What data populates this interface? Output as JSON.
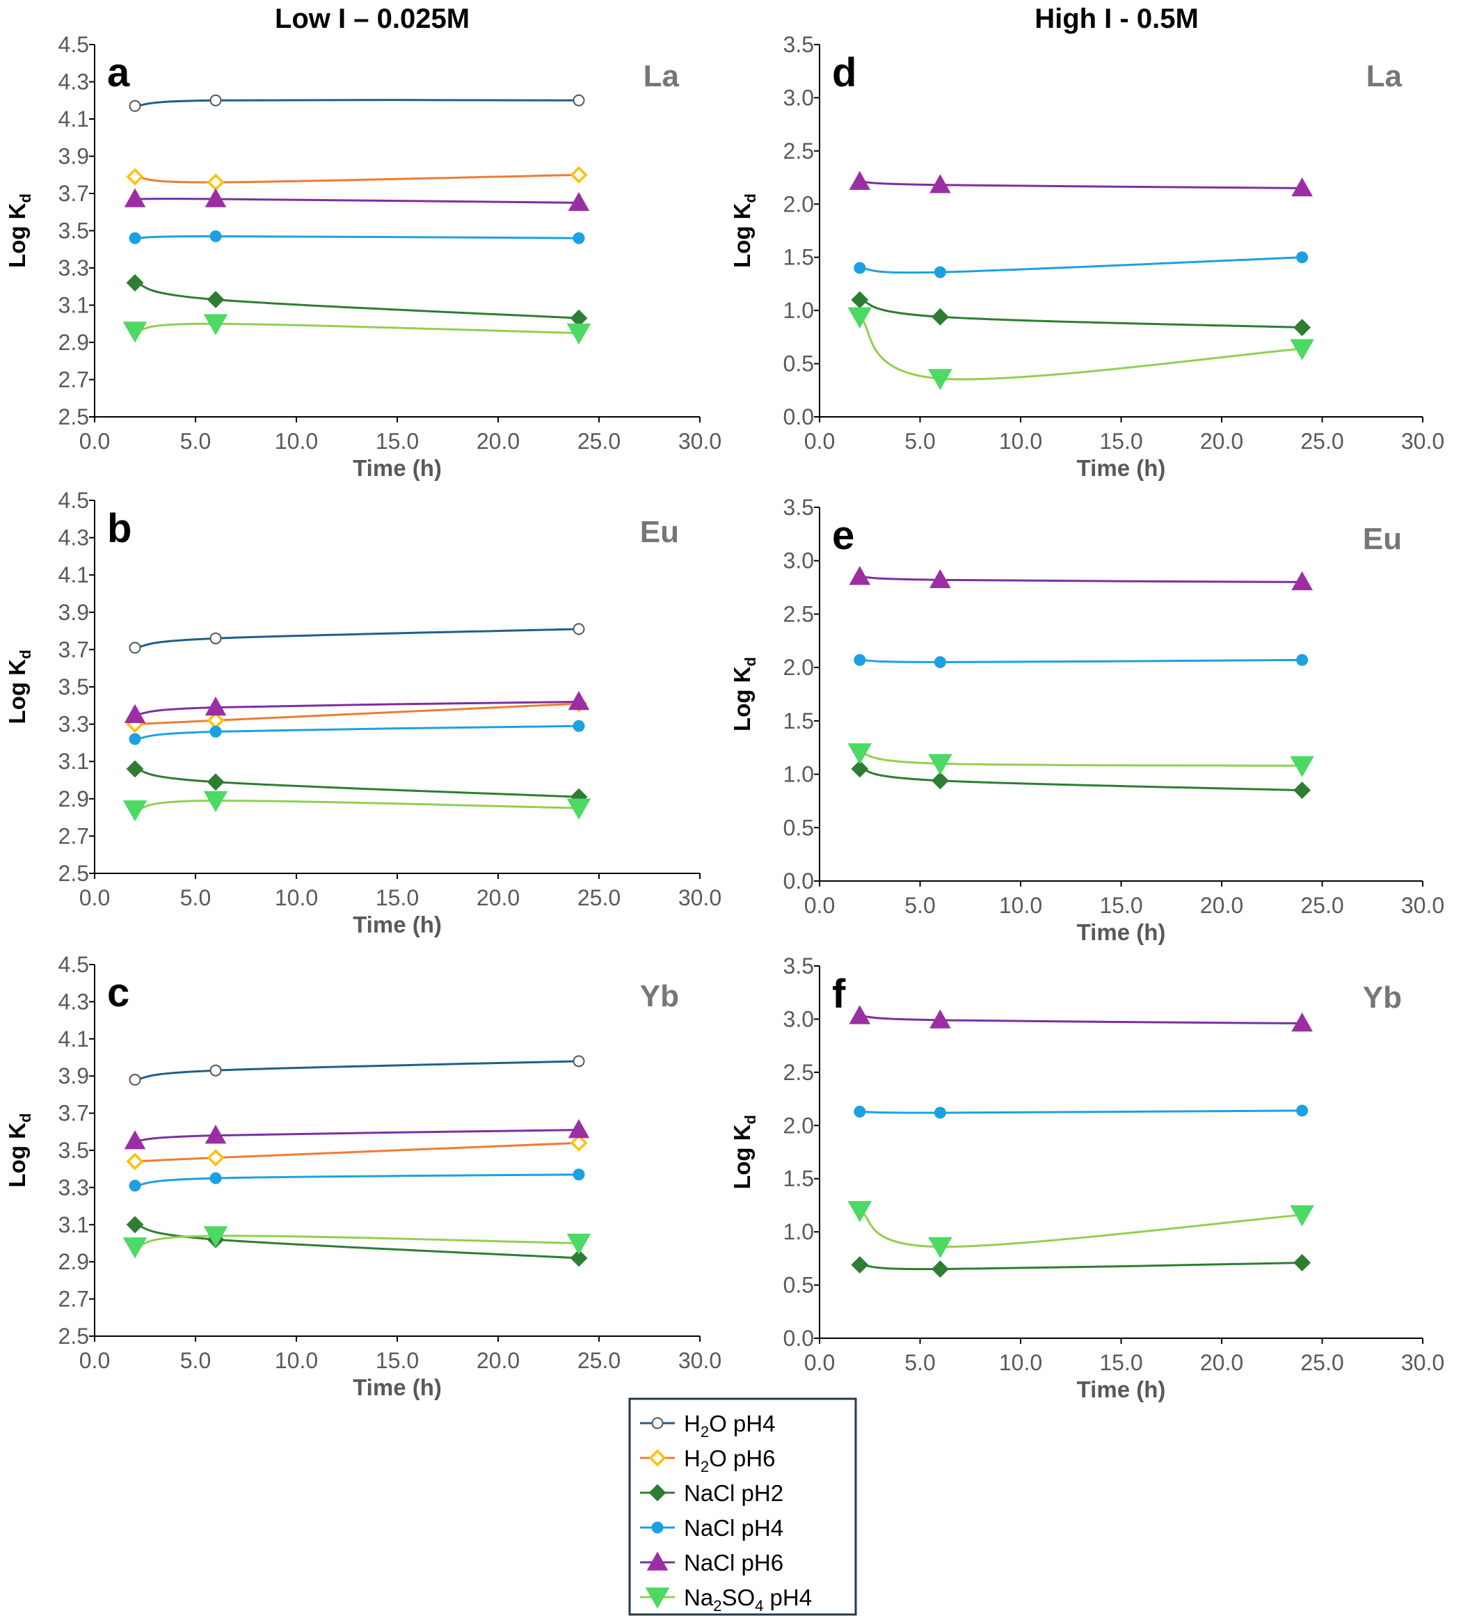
{
  "column_titles": {
    "left": "Low I – 0.025M",
    "right": "High I - 0.5M"
  },
  "legend": [
    {
      "key": "h2o_ph4",
      "parts": [
        [
          "H",
          false
        ],
        [
          "2",
          true
        ],
        [
          "O pH4",
          false
        ]
      ],
      "color": "#1f5f8b",
      "fill": "#ffffff",
      "edge": "#555555",
      "marker": "circle"
    },
    {
      "key": "h2o_ph6",
      "parts": [
        [
          "H",
          false
        ],
        [
          "2",
          true
        ],
        [
          "O pH6",
          false
        ]
      ],
      "color": "#ed7d31",
      "fill": "#ffffff",
      "edge": "#ffc000",
      "marker": "diamond"
    },
    {
      "key": "nacl_ph2",
      "parts": [
        [
          "NaCl pH2",
          false
        ]
      ],
      "color": "#2e7d32",
      "fill": "#2e7d32",
      "edge": "#2e7d32",
      "marker": "diamond"
    },
    {
      "key": "nacl_ph4",
      "parts": [
        [
          "NaCl pH4",
          false
        ]
      ],
      "color": "#1ba1e2",
      "fill": "#1ba1e2",
      "edge": "#1ba1e2",
      "marker": "circle"
    },
    {
      "key": "nacl_ph6",
      "parts": [
        [
          "NaCl pH6",
          false
        ]
      ],
      "color": "#7b2fa0",
      "fill": "#9b2ea3",
      "edge": "#9b2ea3",
      "marker": "triangle-up"
    },
    {
      "key": "na2so4_ph4",
      "parts": [
        [
          "Na",
          false
        ],
        [
          "2",
          true
        ],
        [
          "SO",
          false
        ],
        [
          "4",
          true
        ],
        [
          " pH4",
          false
        ]
      ],
      "color": "#92d050",
      "fill": "#4cd964",
      "edge": "#4cd964",
      "marker": "triangle-down"
    }
  ],
  "chart_data": [
    {
      "panel": "a",
      "element": "La",
      "type": "line",
      "title": "",
      "xlabel": "Time (h)",
      "ylabel": [
        "Log K",
        "d"
      ],
      "xlim": [
        0,
        30
      ],
      "xticks": [
        "0.0",
        "5.0",
        "10.0",
        "15.0",
        "20.0",
        "25.0",
        "30.0"
      ],
      "ylim": [
        2.5,
        4.5
      ],
      "yticks": [
        "2.5",
        "2.7",
        "2.9",
        "3.1",
        "3.3",
        "3.5",
        "3.7",
        "3.9",
        "4.1",
        "4.3",
        "4.5"
      ],
      "x": [
        2,
        6,
        24
      ],
      "series": [
        {
          "name": "H2O pH4",
          "key": "h2o_ph4",
          "values": [
            4.17,
            4.2,
            4.2
          ]
        },
        {
          "name": "H2O pH6",
          "key": "h2o_ph6",
          "values": [
            3.79,
            3.76,
            3.8
          ]
        },
        {
          "name": "NaCl pH2",
          "key": "nacl_ph2",
          "values": [
            3.22,
            3.13,
            3.03
          ]
        },
        {
          "name": "NaCl pH4",
          "key": "nacl_ph4",
          "values": [
            3.46,
            3.47,
            3.46
          ]
        },
        {
          "name": "NaCl pH6",
          "key": "nacl_ph6",
          "values": [
            3.67,
            3.67,
            3.65
          ]
        },
        {
          "name": "Na2SO4 pH4",
          "key": "na2so4_ph4",
          "values": [
            2.96,
            3.0,
            2.95
          ]
        }
      ]
    },
    {
      "panel": "b",
      "element": "Eu",
      "type": "line",
      "title": "",
      "xlabel": "Time (h)",
      "ylabel": [
        "Log K",
        "d"
      ],
      "xlim": [
        0,
        30
      ],
      "xticks": [
        "0.0",
        "5.0",
        "10.0",
        "15.0",
        "20.0",
        "25.0",
        "30.0"
      ],
      "ylim": [
        2.5,
        4.5
      ],
      "yticks": [
        "2.5",
        "2.7",
        "2.9",
        "3.1",
        "3.3",
        "3.5",
        "3.7",
        "3.9",
        "4.1",
        "4.3",
        "4.5"
      ],
      "x": [
        2,
        6,
        24
      ],
      "series": [
        {
          "name": "H2O pH4",
          "key": "h2o_ph4",
          "values": [
            3.71,
            3.76,
            3.81
          ]
        },
        {
          "name": "H2O pH6",
          "key": "h2o_ph6",
          "values": [
            3.3,
            3.32,
            3.41
          ]
        },
        {
          "name": "NaCl pH2",
          "key": "nacl_ph2",
          "values": [
            3.06,
            2.99,
            2.91
          ]
        },
        {
          "name": "NaCl pH4",
          "key": "nacl_ph4",
          "values": [
            3.22,
            3.26,
            3.29
          ]
        },
        {
          "name": "NaCl pH6",
          "key": "nacl_ph6",
          "values": [
            3.35,
            3.39,
            3.42
          ]
        },
        {
          "name": "Na2SO4 pH4",
          "key": "na2so4_ph4",
          "values": [
            2.84,
            2.89,
            2.85
          ]
        }
      ]
    },
    {
      "panel": "c",
      "element": "Yb",
      "type": "line",
      "title": "",
      "xlabel": "Time (h)",
      "ylabel": [
        "Log K",
        "d"
      ],
      "xlim": [
        0,
        30
      ],
      "xticks": [
        "0.0",
        "5.0",
        "10.0",
        "15.0",
        "20.0",
        "25.0",
        "30.0"
      ],
      "ylim": [
        2.5,
        4.5
      ],
      "yticks": [
        "2.5",
        "2.7",
        "2.9",
        "3.1",
        "3.3",
        "3.5",
        "3.7",
        "3.9",
        "4.1",
        "4.3",
        "4.5"
      ],
      "x": [
        2,
        6,
        24
      ],
      "series": [
        {
          "name": "H2O pH4",
          "key": "h2o_ph4",
          "values": [
            3.88,
            3.93,
            3.98
          ]
        },
        {
          "name": "H2O pH6",
          "key": "h2o_ph6",
          "values": [
            3.44,
            3.46,
            3.54
          ]
        },
        {
          "name": "NaCl pH2",
          "key": "nacl_ph2",
          "values": [
            3.1,
            3.02,
            2.92
          ]
        },
        {
          "name": "NaCl pH4",
          "key": "nacl_ph4",
          "values": [
            3.31,
            3.35,
            3.37
          ]
        },
        {
          "name": "NaCl pH6",
          "key": "nacl_ph6",
          "values": [
            3.55,
            3.58,
            3.61
          ]
        },
        {
          "name": "Na2SO4 pH4",
          "key": "na2so4_ph4",
          "values": [
            2.98,
            3.04,
            3.0
          ]
        }
      ]
    },
    {
      "panel": "d",
      "element": "La",
      "type": "line",
      "title": "",
      "xlabel": "Time (h)",
      "ylabel": [
        "Log K",
        "d"
      ],
      "xlim": [
        0,
        30
      ],
      "xticks": [
        "0.0",
        "5.0",
        "10.0",
        "15.0",
        "20.0",
        "25.0",
        "30.0"
      ],
      "ylim": [
        0,
        3.5
      ],
      "yticks": [
        "0.0",
        "0.5",
        "1.0",
        "1.5",
        "2.0",
        "2.5",
        "3.0",
        "3.5"
      ],
      "x": [
        2,
        6,
        24
      ],
      "series": [
        {
          "name": "NaCl pH2",
          "key": "nacl_ph2",
          "values": [
            1.1,
            0.94,
            0.84
          ]
        },
        {
          "name": "NaCl pH4",
          "key": "nacl_ph4",
          "values": [
            1.4,
            1.36,
            1.5
          ]
        },
        {
          "name": "NaCl pH6",
          "key": "nacl_ph6",
          "values": [
            2.21,
            2.18,
            2.15
          ]
        },
        {
          "name": "Na2SO4 pH4",
          "key": "na2so4_ph4",
          "values": [
            0.94,
            0.36,
            0.64
          ]
        }
      ]
    },
    {
      "panel": "e",
      "element": "Eu",
      "type": "line",
      "title": "",
      "xlabel": "Time (h)",
      "ylabel": [
        "Log K",
        "d"
      ],
      "xlim": [
        0,
        30
      ],
      "xticks": [
        "0.0",
        "5.0",
        "10.0",
        "15.0",
        "20.0",
        "25.0",
        "30.0"
      ],
      "ylim": [
        0,
        3.5
      ],
      "yticks": [
        "0.0",
        "0.5",
        "1.0",
        "1.5",
        "2.0",
        "2.5",
        "3.0",
        "3.5"
      ],
      "x": [
        2,
        6,
        24
      ],
      "series": [
        {
          "name": "NaCl pH2",
          "key": "nacl_ph2",
          "values": [
            1.05,
            0.94,
            0.85
          ]
        },
        {
          "name": "NaCl pH4",
          "key": "nacl_ph4",
          "values": [
            2.07,
            2.05,
            2.07
          ]
        },
        {
          "name": "NaCl pH6",
          "key": "nacl_ph6",
          "values": [
            2.85,
            2.82,
            2.8
          ]
        },
        {
          "name": "Na2SO4 pH4",
          "key": "na2so4_ph4",
          "values": [
            1.2,
            1.1,
            1.08
          ]
        }
      ]
    },
    {
      "panel": "f",
      "element": "Yb",
      "type": "line",
      "title": "",
      "xlabel": "Time (h)",
      "ylabel": [
        "Log K",
        "d"
      ],
      "xlim": [
        0,
        30
      ],
      "xticks": [
        "0.0",
        "5.0",
        "10.0",
        "15.0",
        "20.0",
        "25.0",
        "30.0"
      ],
      "ylim": [
        0,
        3.5
      ],
      "yticks": [
        "0.0",
        "0.5",
        "1.0",
        "1.5",
        "2.0",
        "2.5",
        "3.0",
        "3.5"
      ],
      "x": [
        2,
        6,
        24
      ],
      "series": [
        {
          "name": "NaCl pH2",
          "key": "nacl_ph2",
          "values": [
            0.69,
            0.65,
            0.71
          ]
        },
        {
          "name": "NaCl pH4",
          "key": "nacl_ph4",
          "values": [
            2.13,
            2.12,
            2.14
          ]
        },
        {
          "name": "NaCl pH6",
          "key": "nacl_ph6",
          "values": [
            3.03,
            2.99,
            2.96
          ]
        },
        {
          "name": "Na2SO4 pH4",
          "key": "na2so4_ph4",
          "values": [
            1.2,
            0.86,
            1.16
          ]
        }
      ]
    }
  ]
}
